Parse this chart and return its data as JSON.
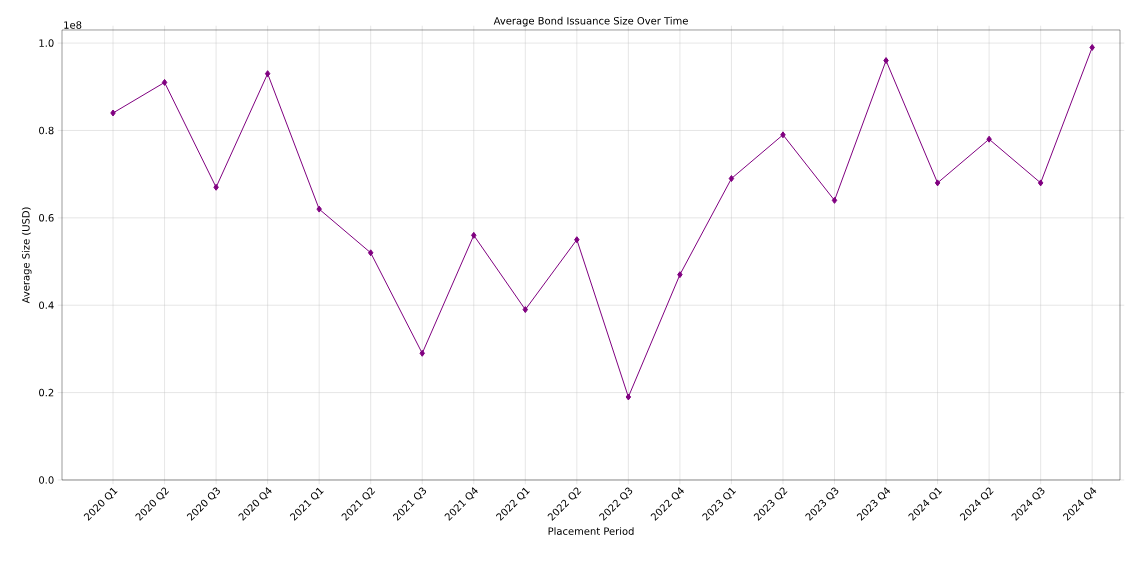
{
  "chart_data": {
    "type": "line",
    "title": "Average Bond Issuance Size Over Time",
    "xlabel": "Placement Period",
    "ylabel": "Average Size (USD)",
    "categories": [
      "2020 Q1",
      "2020 Q2",
      "2020 Q3",
      "2020 Q4",
      "2021 Q1",
      "2021 Q2",
      "2021 Q3",
      "2021 Q4",
      "2022 Q1",
      "2022 Q2",
      "2022 Q3",
      "2022 Q4",
      "2023 Q1",
      "2023 Q2",
      "2023 Q3",
      "2023 Q4",
      "2024 Q1",
      "2024 Q2",
      "2024 Q3",
      "2024 Q4"
    ],
    "series": [
      {
        "color": "#800080",
        "values": [
          0.84,
          0.91,
          0.67,
          0.93,
          0.62,
          0.52,
          0.29,
          0.56,
          0.39,
          0.55,
          0.19,
          0.47,
          0.69,
          0.79,
          0.64,
          0.96,
          0.68,
          0.78,
          0.68,
          0.99
        ]
      }
    ],
    "ylim": [
      0,
      1.03
    ],
    "yticks": [
      {
        "value": 0,
        "label": "0.0"
      },
      0.2,
      0.4,
      0.6,
      0.8,
      {
        "value": 1,
        "label": "1.0"
      }
    ],
    "annotations": [
      "1e8"
    ],
    "grid": true,
    "marker": "diamond",
    "line_style": "solid"
  }
}
